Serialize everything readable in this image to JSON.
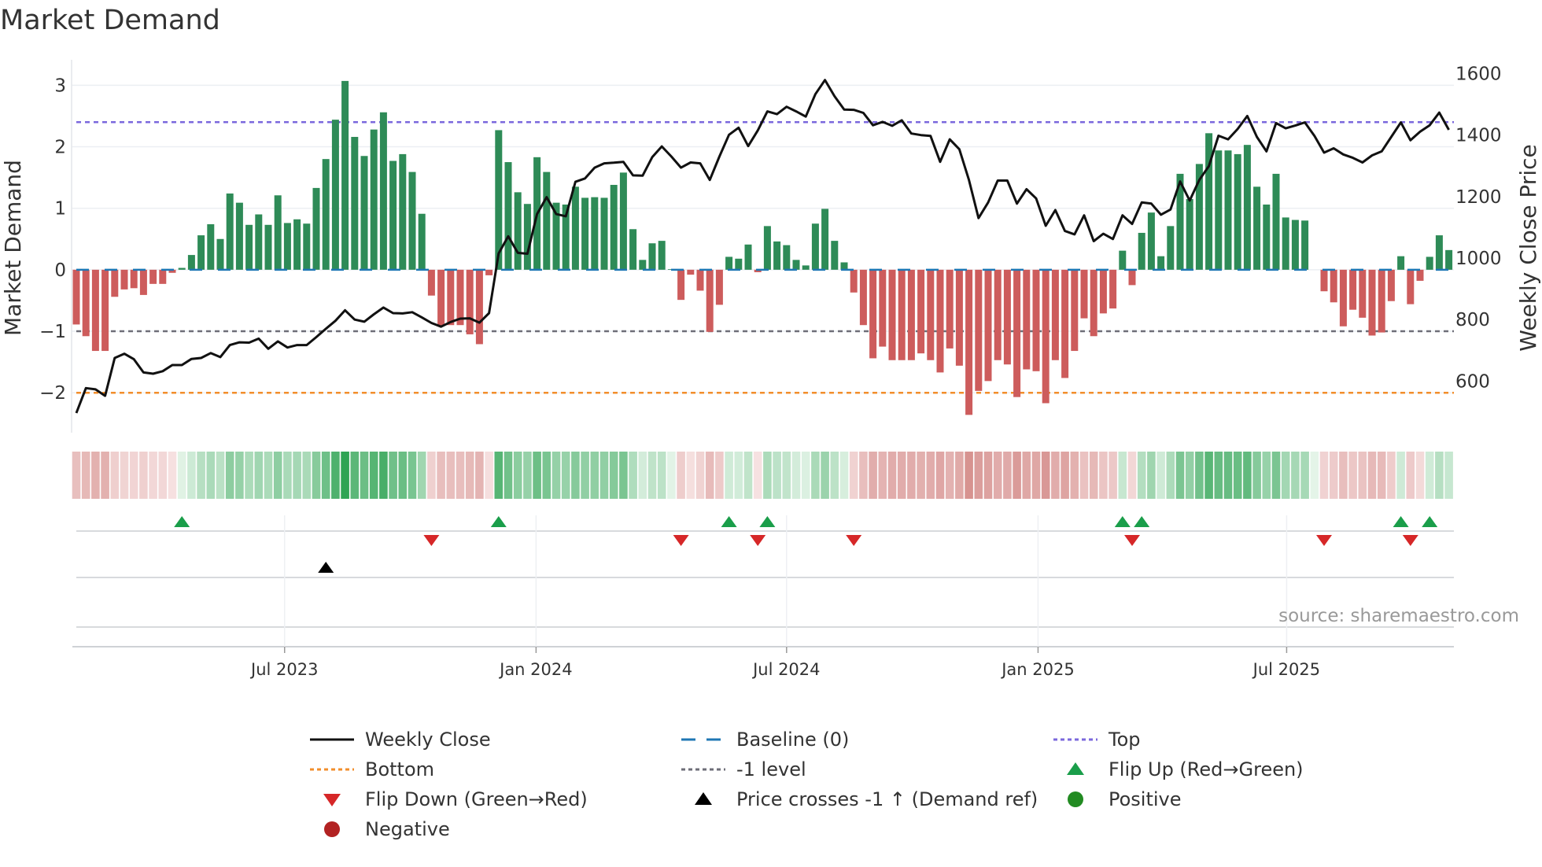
{
  "title": "Market Demand",
  "source": "source: sharemaestro.com",
  "colors": {
    "pos": "#2e8b57",
    "neg": "#cd5c5c",
    "top": "#7b68dd",
    "bottom": "#f28e2b",
    "minus1": "#6e6e78",
    "baseline": "#1f77b4",
    "price": "#111111",
    "flip_up": "#1a9e4a",
    "flip_down": "#d62728",
    "cross": "#000000",
    "positive_dot": "#228b22",
    "negative_dot": "#b22222"
  },
  "chart_data": {
    "type": "bar",
    "title": "Market Demand",
    "ylabel": "Market Demand",
    "y2label": "Weekly Close Price",
    "ylim": [
      -2.65,
      3.35
    ],
    "y2lim": [
      432,
      1632
    ],
    "yticks": [
      {
        "v": -2,
        "label": "−2"
      },
      {
        "v": -1,
        "label": "−1"
      },
      {
        "v": 0,
        "label": "0"
      },
      {
        "v": 1,
        "label": "1"
      },
      {
        "v": 2,
        "label": "2"
      },
      {
        "v": 3,
        "label": "3"
      }
    ],
    "y2ticks": [
      {
        "v": 600,
        "label": "600"
      },
      {
        "v": 800,
        "label": "800"
      },
      {
        "v": 1000,
        "label": "1000"
      },
      {
        "v": 1200,
        "label": "1200"
      },
      {
        "v": 1400,
        "label": "1400"
      },
      {
        "v": 1600,
        "label": "1600"
      }
    ],
    "xticks": [
      {
        "week": 21.7,
        "label": "Jul 2023"
      },
      {
        "week": 47.9,
        "label": "Jan 2024"
      },
      {
        "week": 74,
        "label": "Jul 2024"
      },
      {
        "week": 100.2,
        "label": "Jan 2025"
      },
      {
        "week": 126.1,
        "label": "Jul 2025"
      }
    ],
    "levels": {
      "top": 2.4,
      "bottom": -2.0,
      "minus1": -1,
      "baseline": 0
    },
    "demand": [
      -0.89,
      -1.08,
      -1.32,
      -1.32,
      -0.44,
      -0.32,
      -0.3,
      -0.41,
      -0.23,
      -0.23,
      -0.05,
      0.03,
      0.24,
      0.56,
      0.74,
      0.5,
      1.24,
      1.09,
      0.73,
      0.9,
      0.73,
      1.21,
      0.76,
      0.82,
      0.75,
      1.33,
      1.8,
      2.44,
      3.07,
      2.16,
      1.85,
      2.28,
      2.56,
      1.77,
      1.88,
      1.59,
      0.91,
      -0.42,
      -0.91,
      -0.9,
      -0.9,
      -1.05,
      -1.21,
      -0.09,
      2.27,
      1.75,
      1.26,
      1.07,
      1.83,
      1.59,
      1.09,
      1.06,
      1.35,
      1.17,
      1.18,
      1.17,
      1.38,
      1.58,
      0.66,
      0.16,
      0.43,
      0.47,
      0.01,
      -0.49,
      -0.08,
      -0.34,
      -1.01,
      -0.57,
      0.21,
      0.18,
      0.41,
      -0.04,
      0.71,
      0.46,
      0.4,
      0.16,
      0.07,
      0.75,
      0.99,
      0.47,
      0.12,
      -0.37,
      -0.9,
      -1.44,
      -1.25,
      -1.47,
      -1.47,
      -1.47,
      -1.36,
      -1.47,
      -1.67,
      -1.28,
      -1.56,
      -2.36,
      -1.97,
      -1.81,
      -1.47,
      -1.54,
      -2.07,
      -1.62,
      -1.65,
      -2.17,
      -1.47,
      -1.76,
      -1.32,
      -0.79,
      -1.08,
      -0.71,
      -0.63,
      0.31,
      -0.25,
      0.6,
      0.93,
      0.22,
      0.71,
      1.56,
      1.15,
      1.72,
      2.22,
      1.94,
      1.94,
      1.88,
      2.03,
      1.35,
      1.06,
      1.56,
      0.85,
      0.81,
      0.8,
      0,
      -0.35,
      -0.53,
      -0.92,
      -0.65,
      -0.78,
      -1.07,
      -1.02,
      -0.51,
      0.22,
      -0.56,
      -0.18,
      0.21,
      0.56,
      0.32
    ],
    "price": [
      496,
      577,
      573,
      552,
      675,
      689,
      671,
      628,
      624,
      632,
      652,
      652,
      672,
      675,
      691,
      678,
      717,
      726,
      725,
      738,
      705,
      729,
      709,
      717,
      717,
      743,
      770,
      796,
      830,
      800,
      793,
      817,
      839,
      821,
      820,
      824,
      807,
      789,
      777,
      792,
      803,
      804,
      790,
      821,
      1015,
      1071,
      1017,
      1014,
      1143,
      1198,
      1143,
      1136,
      1248,
      1259,
      1294,
      1308,
      1310,
      1313,
      1269,
      1268,
      1328,
      1363,
      1330,
      1294,
      1311,
      1308,
      1254,
      1330,
      1401,
      1424,
      1364,
      1415,
      1477,
      1468,
      1492,
      1477,
      1460,
      1533,
      1579,
      1526,
      1483,
      1482,
      1472,
      1432,
      1443,
      1430,
      1448,
      1405,
      1400,
      1397,
      1313,
      1386,
      1354,
      1254,
      1130,
      1181,
      1252,
      1252,
      1177,
      1224,
      1194,
      1105,
      1156,
      1088,
      1077,
      1139,
      1055,
      1079,
      1062,
      1139,
      1111,
      1181,
      1177,
      1141,
      1158,
      1249,
      1187,
      1254,
      1299,
      1398,
      1386,
      1420,
      1462,
      1394,
      1347,
      1439,
      1422,
      1431,
      1441,
      1397,
      1343,
      1357,
      1337,
      1326,
      1311,
      1334,
      1347,
      1394,
      1441,
      1383,
      1411,
      1432,
      1473,
      1417
    ],
    "flip_up_weeks": [
      11,
      44,
      68,
      72,
      109,
      111,
      138,
      141
    ],
    "flip_down_weeks": [
      37,
      63,
      71,
      81,
      110,
      130,
      139
    ],
    "price_cross_weeks": [
      26
    ]
  },
  "legend": [
    {
      "key": "weekly_close",
      "label": "Weekly Close"
    },
    {
      "key": "baseline",
      "label": "Baseline (0)"
    },
    {
      "key": "top",
      "label": "Top"
    },
    {
      "key": "bottom",
      "label": "Bottom"
    },
    {
      "key": "minus1",
      "label": "-1 level"
    },
    {
      "key": "flip_up",
      "label": "Flip Up (Red→Green)"
    },
    {
      "key": "flip_down",
      "label": "Flip Down (Green→Red)"
    },
    {
      "key": "cross",
      "label": "Price crosses -1 ↑ (Demand ref)"
    },
    {
      "key": "positive",
      "label": "Positive"
    },
    {
      "key": "negative",
      "label": "Negative"
    }
  ]
}
